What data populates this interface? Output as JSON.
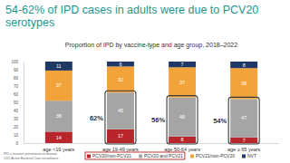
{
  "chart_data": {
    "type": "bar",
    "title": "54-62% of IPD cases in adults were due to PCV20 serotypes",
    "subtitle": "Proportion of IPD by vaccine-type and age group, 2018–2022",
    "categories": [
      "age <19 years",
      "age 19-49 years",
      "age 50-64 years",
      "age ≥ 65 years"
    ],
    "series": [
      {
        "name": "PCV20/non-PCV21",
        "color": "#b8262b",
        "values": [
          14,
          17,
          8,
          7
        ]
      },
      {
        "name": "PCV20 and PCV21",
        "color": "#a5a5a5",
        "values": [
          38,
          45,
          48,
          47
        ]
      },
      {
        "name": "PCV21/non-PCV20",
        "color": "#f2a33a",
        "values": [
          37,
          32,
          37,
          38
        ]
      },
      {
        "name": "NVT",
        "color": "#1f3864",
        "values": [
          11,
          6,
          7,
          8
        ]
      }
    ],
    "stacked": true,
    "data_labels": true,
    "ylim": [
      0,
      100
    ],
    "yticks": [
      0,
      10,
      20,
      30,
      40,
      50,
      60,
      70,
      80,
      90,
      100
    ],
    "grid": false,
    "legend": "bottom",
    "annotations": [
      null,
      "62%",
      "56%",
      "54%"
    ],
    "footnote": [
      "IPD = invasive pneumococcal disease",
      "CDC Active Bacterial Core surveillance"
    ]
  }
}
